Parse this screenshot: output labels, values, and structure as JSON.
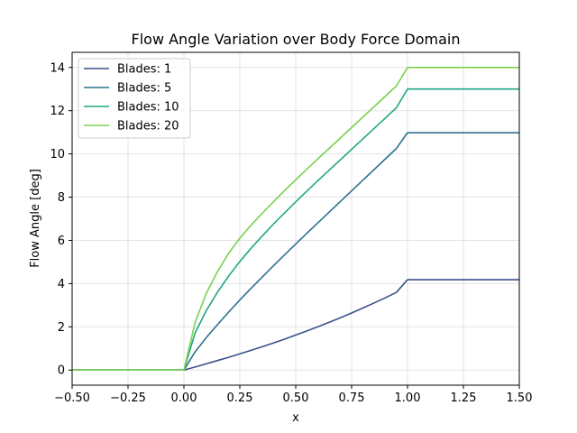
{
  "chart_data": {
    "type": "line",
    "title": "Flow Angle Variation over Body Force Domain",
    "xlabel": "x",
    "ylabel": "Flow Angle [deg]",
    "xlim": [
      -0.5,
      1.5
    ],
    "ylim": [
      -0.7,
      14.7
    ],
    "xticks": [
      "-0.50",
      "-0.25",
      "0.00",
      "0.25",
      "0.50",
      "0.75",
      "1.00",
      "1.25",
      "1.50"
    ],
    "yticks": [
      "0",
      "2",
      "4",
      "6",
      "8",
      "10",
      "12",
      "14"
    ],
    "grid": true,
    "legend_position": "top-left",
    "series": [
      {
        "name": "Blades: 1",
        "color": "#3b518b",
        "x": [
          -0.5,
          0,
          0.05,
          0.1,
          0.15,
          0.2,
          0.25,
          0.3,
          0.35,
          0.4,
          0.45,
          0.5,
          0.55,
          0.6,
          0.65,
          0.7,
          0.75,
          0.8,
          0.85,
          0.9,
          0.95,
          1.0,
          1.5
        ],
        "y": [
          0,
          0,
          0.14,
          0.29,
          0.44,
          0.59,
          0.75,
          0.91,
          1.08,
          1.25,
          1.43,
          1.62,
          1.81,
          2.01,
          2.21,
          2.42,
          2.64,
          2.87,
          3.1,
          3.34,
          3.59,
          4.18,
          4.18
        ]
      },
      {
        "name": "Blades: 5",
        "color": "#2c728e",
        "x": [
          -0.5,
          0,
          0.05,
          0.1,
          0.15,
          0.2,
          0.25,
          0.3,
          0.35,
          0.4,
          0.45,
          0.5,
          0.55,
          0.6,
          0.65,
          0.7,
          0.75,
          0.8,
          0.85,
          0.9,
          0.95,
          1.0,
          1.5
        ],
        "y": [
          0,
          0,
          0.84,
          1.5,
          2.1,
          2.68,
          3.24,
          3.78,
          4.3,
          4.82,
          5.33,
          5.83,
          6.33,
          6.82,
          7.31,
          7.8,
          8.29,
          8.78,
          9.27,
          9.76,
          10.25,
          10.98,
          10.98
        ]
      },
      {
        "name": "Blades: 10",
        "color": "#21a685",
        "x": [
          -0.5,
          0,
          0.05,
          0.1,
          0.15,
          0.2,
          0.25,
          0.3,
          0.35,
          0.4,
          0.45,
          0.5,
          0.55,
          0.6,
          0.65,
          0.7,
          0.75,
          0.8,
          0.85,
          0.9,
          0.95,
          1.0,
          1.5
        ],
        "y": [
          0,
          0,
          1.72,
          2.75,
          3.6,
          4.35,
          5.02,
          5.63,
          6.2,
          6.75,
          7.27,
          7.78,
          8.28,
          8.77,
          9.25,
          9.73,
          10.21,
          10.69,
          11.17,
          11.65,
          12.13,
          13.0,
          13.0
        ]
      },
      {
        "name": "Blades: 20",
        "color": "#7ad151",
        "x": [
          -0.5,
          0,
          0.05,
          0.1,
          0.15,
          0.2,
          0.25,
          0.3,
          0.35,
          0.4,
          0.45,
          0.5,
          0.55,
          0.6,
          0.65,
          0.7,
          0.75,
          0.8,
          0.85,
          0.9,
          0.95,
          1.0,
          1.5
        ],
        "y": [
          0,
          0,
          2.2,
          3.55,
          4.55,
          5.4,
          6.1,
          6.7,
          7.25,
          7.78,
          8.3,
          8.8,
          9.3,
          9.78,
          10.26,
          10.74,
          11.22,
          11.7,
          12.18,
          12.66,
          13.14,
          14.0,
          14.0
        ]
      }
    ]
  }
}
